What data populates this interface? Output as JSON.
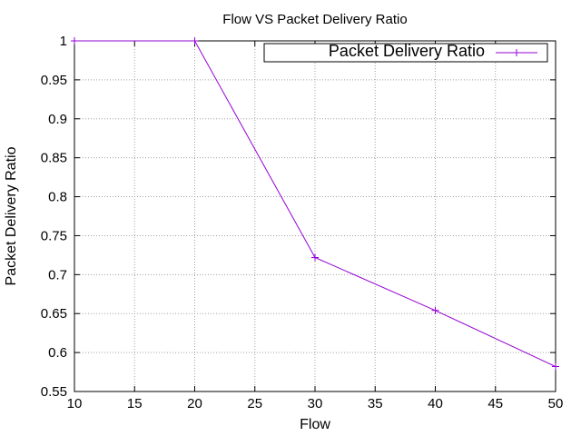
{
  "chart_data": {
    "type": "line",
    "title": "Flow VS Packet Delivery Ratio",
    "xlabel": "Flow",
    "ylabel": "Packet Delivery Ratio",
    "xlim": [
      10,
      50
    ],
    "ylim": [
      0.55,
      1.0
    ],
    "xticks": [
      10,
      15,
      20,
      25,
      30,
      35,
      40,
      45,
      50
    ],
    "yticks": [
      0.55,
      0.6,
      0.65,
      0.7,
      0.75,
      0.8,
      0.85,
      0.9,
      0.95,
      1
    ],
    "xtick_labels": [
      "10",
      "15",
      "20",
      "25",
      "30",
      "35",
      "40",
      "45",
      "50"
    ],
    "ytick_labels": [
      "0.55",
      "0.6",
      "0.65",
      "0.7",
      "0.75",
      "0.8",
      "0.85",
      "0.9",
      "0.95",
      "1"
    ],
    "grid": true,
    "legend_position": "top-right",
    "series": [
      {
        "name": "Packet Delivery Ratio",
        "color": "#9400d3",
        "marker": "plus",
        "x": [
          10,
          20,
          30,
          40,
          50
        ],
        "values": [
          1.0,
          1.0,
          0.722,
          0.654,
          0.582
        ]
      }
    ]
  }
}
